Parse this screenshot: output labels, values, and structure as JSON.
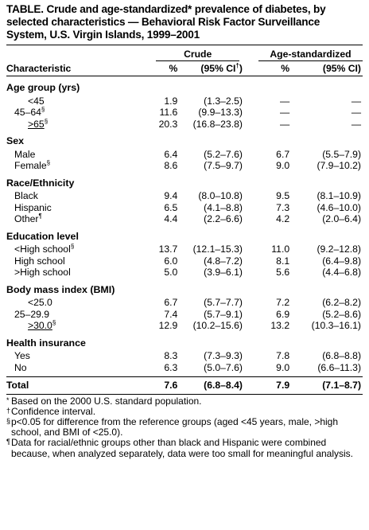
{
  "title": "TABLE. Crude and age-standardized* prevalence of diabetes, by selected characteristics — Behavioral Risk Factor Surveillance System, U.S. Virgin Islands, 1999–2001",
  "groups": {
    "crude": "Crude",
    "age_std": "Age-standardized"
  },
  "headers": {
    "characteristic": "Characteristic",
    "pct": "%",
    "ci_crude": "(95% CI",
    "ci_crude_mark": "†",
    "ci_crude_close": ")",
    "pct2": "%",
    "ci_std": "(95% CI)"
  },
  "sections": [
    {
      "label": "Age group (yrs)",
      "rows": [
        {
          "label": "<45",
          "mark": "",
          "style": "ind2",
          "pct": "1.9",
          "ci": "(1.3–2.5)",
          "pct2": "—",
          "ci2": "—"
        },
        {
          "label": "45–64",
          "mark": "§",
          "style": "",
          "pct": "11.6",
          "ci": "(9.9–13.3)",
          "pct2": "—",
          "ci2": "—"
        },
        {
          "label": ">65",
          "mark": "§",
          "style": "ind2 uline",
          "pct": "20.3",
          "ci": "(16.8–23.8)",
          "pct2": "—",
          "ci2": "—"
        }
      ]
    },
    {
      "label": "Sex",
      "rows": [
        {
          "label": "Male",
          "mark": "",
          "style": "",
          "pct": "6.4",
          "ci": "(5.2–7.6)",
          "pct2": "6.7",
          "ci2": "(5.5–7.9)"
        },
        {
          "label": "Female",
          "mark": "§",
          "style": "",
          "pct": "8.6",
          "ci": "(7.5–9.7)",
          "pct2": "9.0",
          "ci2": "(7.9–10.2)"
        }
      ]
    },
    {
      "label": "Race/Ethnicity",
      "rows": [
        {
          "label": "Black",
          "mark": "",
          "style": "",
          "pct": "9.4",
          "ci": "(8.0–10.8)",
          "pct2": "9.5",
          "ci2": "(8.1–10.9)"
        },
        {
          "label": "Hispanic",
          "mark": "",
          "style": "",
          "pct": "6.5",
          "ci": "(4.1–8.8)",
          "pct2": "7.3",
          "ci2": "(4.6–10.0)"
        },
        {
          "label": "Other",
          "mark": "¶",
          "style": "",
          "pct": "4.4",
          "ci": "(2.2–6.6)",
          "pct2": "4.2",
          "ci2": "(2.0–6.4)"
        }
      ]
    },
    {
      "label": "Education level",
      "rows": [
        {
          "label": "<High school",
          "mark": "§",
          "style": "",
          "pct": "13.7",
          "ci": "(12.1–15.3)",
          "pct2": "11.0",
          "ci2": "(9.2–12.8)"
        },
        {
          "label": "High school",
          "mark": "",
          "style": "",
          "pct": "6.0",
          "ci": "(4.8–7.2)",
          "pct2": "8.1",
          "ci2": "(6.4–9.8)"
        },
        {
          "label": ">High school",
          "mark": "",
          "style": "",
          "pct": "5.0",
          "ci": "(3.9–6.1)",
          "pct2": "5.6",
          "ci2": "(4.4–6.8)"
        }
      ]
    },
    {
      "label": "Body mass index (BMI)",
      "rows": [
        {
          "label": "<25.0",
          "mark": "",
          "style": "ind2",
          "pct": "6.7",
          "ci": "(5.7–7.7)",
          "pct2": "7.2",
          "ci2": "(6.2–8.2)"
        },
        {
          "label": "25–29.9",
          "mark": "",
          "style": "",
          "pct": "7.4",
          "ci": "(5.7–9.1)",
          "pct2": "6.9",
          "ci2": "(5.2–8.6)"
        },
        {
          "label": ">30.0",
          "mark": "§",
          "style": "ind2 uline",
          "pct": "12.9",
          "ci": "(10.2–15.6)",
          "pct2": "13.2",
          "ci2": "(10.3–16.1)"
        }
      ]
    },
    {
      "label": "Health insurance",
      "rows": [
        {
          "label": "Yes",
          "mark": "",
          "style": "",
          "pct": "8.3",
          "ci": "(7.3–9.3)",
          "pct2": "7.8",
          "ci2": "(6.8–8.8)"
        },
        {
          "label": "No",
          "mark": "",
          "style": "",
          "pct": "6.3",
          "ci": "(5.0–7.6)",
          "pct2": "9.0",
          "ci2": "(6.6–11.3)"
        }
      ]
    }
  ],
  "total": {
    "label": "Total",
    "pct": "7.6",
    "ci": "(6.8–8.4)",
    "pct2": "7.9",
    "ci2": "(7.1–8.7)"
  },
  "footnotes": [
    {
      "mark": "*",
      "text": "Based on the 2000 U.S. standard population."
    },
    {
      "mark": "†",
      "text": "Confidence interval."
    },
    {
      "mark": "§",
      "text": "p<0.05 for difference from the reference groups (aged <45 years, male, >high school, and BMI of <25.0)."
    },
    {
      "mark": "¶",
      "text": "Data for racial/ethnic groups other than black and Hispanic were combined because, when analyzed separately, data were too small for meaningful analysis."
    }
  ]
}
